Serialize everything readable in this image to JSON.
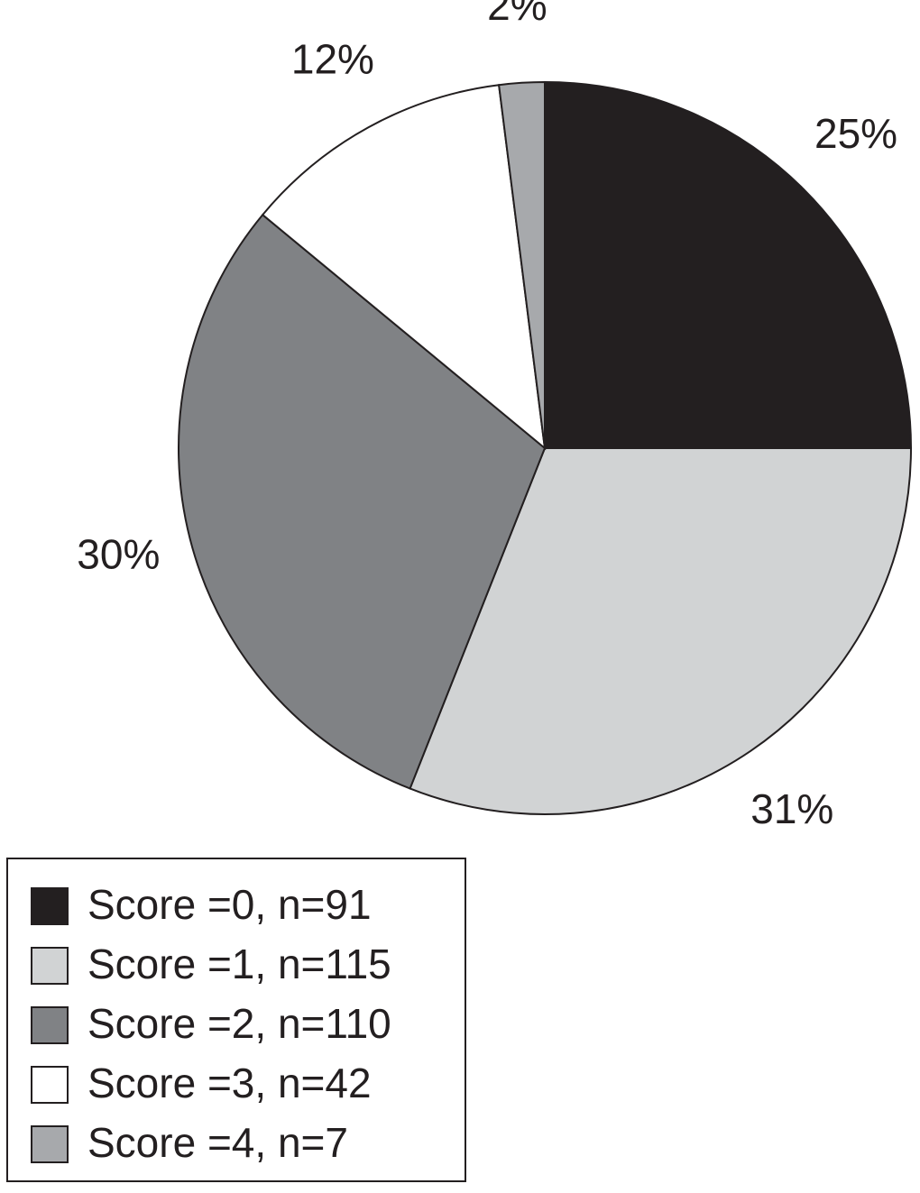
{
  "chart_data": {
    "type": "pie",
    "categories": [
      "Score =0, n=91",
      "Score =1, n=115",
      "Score =2, n=110",
      "Score =3, n=42",
      "Score =4, n=7"
    ],
    "values": [
      25,
      31,
      30,
      12,
      2
    ],
    "value_labels": [
      "25%",
      "31%",
      "30%",
      "12%",
      "2%"
    ],
    "colors": [
      "#231f20",
      "#d1d3d4",
      "#808285",
      "#ffffff",
      "#a7a9ac"
    ]
  }
}
